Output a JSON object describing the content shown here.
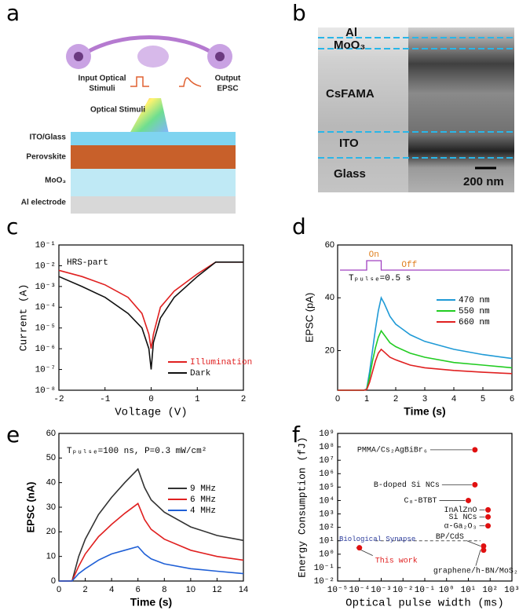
{
  "panel_letters": [
    "a",
    "b",
    "c",
    "d",
    "e",
    "f"
  ],
  "figure_a": {
    "input_label": [
      "Input Optical",
      "Stimuli"
    ],
    "output_label": [
      "Output",
      "EPSC"
    ],
    "stimuli_label": "Optical Stimuli",
    "layers": [
      "ITO/Glass",
      "Perovskite",
      "MoO₃",
      "Al electrode"
    ]
  },
  "figure_b": {
    "layers": [
      "Al",
      "MoO₃",
      "CsFAMA",
      "ITO",
      "Glass"
    ],
    "scale_bar": "200 nm"
  },
  "chart_data": [
    {
      "type": "line",
      "xlabel": "Voltage (V)",
      "ylabel": "Current (A)",
      "annotation": "HRS-part",
      "xlim": [
        -2,
        2
      ],
      "xticks": [
        -2,
        -1,
        0,
        1,
        2
      ],
      "ylog": true,
      "ylim": [
        1e-08,
        0.1
      ],
      "yticks": [
        {
          "value": 1e-08,
          "label": "10⁻⁸"
        },
        {
          "value": 1e-07,
          "label": "10⁻⁷"
        },
        {
          "value": 1e-06,
          "label": "10⁻⁶"
        },
        {
          "value": 1e-05,
          "label": "10⁻⁵"
        },
        {
          "value": 0.0001,
          "label": "10⁻⁴"
        },
        {
          "value": 0.001,
          "label": "10⁻³"
        },
        {
          "value": 0.01,
          "label": "10⁻²"
        },
        {
          "value": 0.1,
          "label": "10⁻¹"
        }
      ],
      "x": [
        -2,
        -1.5,
        -1,
        -0.5,
        -0.2,
        -0.05,
        0,
        0.05,
        0.2,
        0.5,
        1,
        1.4,
        2
      ],
      "series": [
        {
          "name": "Illumination",
          "color": "#e02020",
          "values": [
            0.006,
            0.003,
            0.0012,
            0.0003,
            5e-05,
            5e-06,
            1e-06,
            5e-06,
            0.0001,
            0.0006,
            0.004,
            0.015,
            0.015
          ]
        },
        {
          "name": "Dark",
          "color": "#111111",
          "values": [
            0.003,
            0.001,
            0.0003,
            5e-05,
            1e-05,
            1e-06,
            1e-07,
            2e-06,
            3e-05,
            0.0003,
            0.003,
            0.015,
            0.015
          ]
        }
      ],
      "legend": "lower right",
      "legend_colored_text": true
    },
    {
      "type": "line",
      "xlabel": "Time (s)",
      "ylabel": "EPSC (pA)",
      "inset": {
        "on": "On",
        "off": "Off",
        "period": "Tₚᵤₗₛₑ=0.5 s"
      },
      "xlim": [
        0,
        6
      ],
      "xticks": [
        0,
        1,
        2,
        3,
        4,
        5,
        6
      ],
      "ylim": [
        5,
        60
      ],
      "yticks": [
        20,
        40,
        60
      ],
      "x": [
        0,
        0.9,
        1.0,
        1.1,
        1.2,
        1.3,
        1.4,
        1.5,
        1.6,
        1.8,
        2,
        2.5,
        3,
        4,
        5,
        6
      ],
      "series": [
        {
          "name": "470 nm",
          "color": "#1f9ad6",
          "values": [
            5,
            5,
            5.5,
            12,
            20,
            28,
            35,
            40,
            38,
            33,
            30,
            26,
            23.5,
            20.5,
            18.5,
            17
          ]
        },
        {
          "name": "550 nm",
          "color": "#22cc22",
          "values": [
            5,
            5,
            5.3,
            10,
            16,
            21,
            25,
            27.5,
            26,
            23,
            21.5,
            19,
            17.5,
            15.5,
            14.5,
            13.5
          ]
        },
        {
          "name": "660 nm",
          "color": "#e02020",
          "values": [
            5,
            5,
            5.2,
            8,
            12,
            16,
            19,
            20.5,
            19.5,
            17.5,
            16.5,
            14.5,
            13.5,
            12.5,
            11.8,
            11.3
          ]
        }
      ],
      "legend": "upper right"
    },
    {
      "type": "line",
      "xlabel": "Time (s)",
      "ylabel": "EPSC (nA)",
      "annotation": "Tₚᵤₗₛₑ=100 ns, P=0.3 mW/cm²",
      "xlim": [
        0,
        14
      ],
      "xticks": [
        0,
        2,
        4,
        6,
        8,
        10,
        12,
        14
      ],
      "ylim": [
        0,
        60
      ],
      "yticks": [
        0,
        10,
        20,
        30,
        40,
        50,
        60
      ],
      "x": [
        0,
        0.9,
        1,
        1.5,
        2,
        3,
        4,
        5,
        6,
        6.5,
        7,
        8,
        10,
        12,
        14
      ],
      "series": [
        {
          "name": "9 MHz",
          "color": "#333333",
          "values": [
            0,
            0,
            0,
            10,
            17,
            27,
            34,
            40,
            45.5,
            38,
            33,
            28,
            22,
            18.5,
            16.5
          ]
        },
        {
          "name": "6 MHz",
          "color": "#e02020",
          "values": [
            0,
            0,
            0,
            6,
            11,
            18,
            23,
            27.5,
            31.5,
            25,
            21,
            17,
            12.5,
            10,
            8.5
          ]
        },
        {
          "name": "4 MHz",
          "color": "#1f5fd6",
          "values": [
            0,
            0,
            0,
            3,
            5,
            8.5,
            11,
            12.5,
            14,
            11,
            9,
            7,
            5,
            4,
            3
          ]
        }
      ],
      "legend": "upper right"
    },
    {
      "type": "scatter",
      "xlabel": "Optical pulse width (ms)",
      "ylabel": "Energy Consumption (fJ)",
      "xlog": true,
      "xlim": [
        1e-05,
        1000
      ],
      "xticks": [
        {
          "value": 1e-05,
          "label": "10⁻⁵"
        },
        {
          "value": 0.0001,
          "label": "10⁻⁴"
        },
        {
          "value": 0.001,
          "label": "10⁻³"
        },
        {
          "value": 0.01,
          "label": "10⁻²"
        },
        {
          "value": 0.1,
          "label": "10⁻¹"
        },
        {
          "value": 1,
          "label": "10⁰"
        },
        {
          "value": 10,
          "label": "10¹"
        },
        {
          "value": 100,
          "label": "10²"
        },
        {
          "value": 1000,
          "label": "10³"
        }
      ],
      "ylog": true,
      "ylim": [
        0.01,
        1000000000.0
      ],
      "yticks": [
        {
          "value": 0.01,
          "label": "10⁻²"
        },
        {
          "value": 0.1,
          "label": "10⁻¹"
        },
        {
          "value": 1,
          "label": "10⁰"
        },
        {
          "value": 10,
          "label": "10¹"
        },
        {
          "value": 100,
          "label": "10²"
        },
        {
          "value": 1000,
          "label": "10³"
        },
        {
          "value": 10000,
          "label": "10⁴"
        },
        {
          "value": 100000,
          "label": "10⁵"
        },
        {
          "value": 1000000,
          "label": "10⁶"
        },
        {
          "value": 10000000,
          "label": "10⁷"
        },
        {
          "value": 100000000,
          "label": "10⁸"
        },
        {
          "value": 1000000000,
          "label": "10⁹"
        }
      ],
      "x": [
        20,
        20,
        10,
        80,
        80,
        80,
        50,
        50,
        0.0001
      ],
      "values": [
        60000000,
        150000,
        10000,
        2000,
        600,
        130,
        4,
        2,
        3
      ],
      "point_labels": [
        "PMMA/Cs₂AgBiBr₆",
        "B-doped Si NCs",
        "C₈-BTBT",
        "InAlZnO",
        "Si NCs",
        "α-Ga₂O₃",
        "BP/CdS",
        "graphene/h-BN/MoS₂",
        "This work"
      ],
      "label_colors": [
        "#111111",
        "#111111",
        "#111111",
        "#111111",
        "#111111",
        "#111111",
        "#111111",
        "#111111",
        "#e02020"
      ],
      "color": "#e01010",
      "reference_line": {
        "label": "Biological Synapse",
        "value": 10,
        "color": "#2a3a9a"
      }
    }
  ]
}
